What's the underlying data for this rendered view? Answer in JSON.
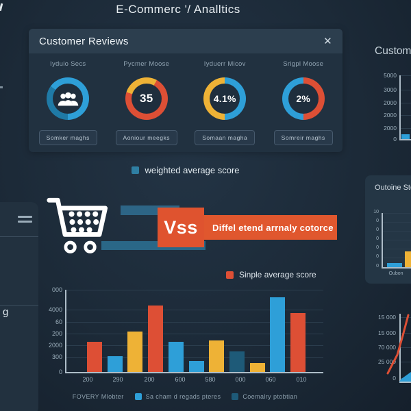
{
  "title": "E-Commerc '/ Analltics",
  "colors": {
    "blue": "#2e9fd8",
    "blue_dark": "#1f7aa6",
    "dark_blue": "#1e5a78",
    "red": "#dd4f35",
    "yellow": "#eeb236",
    "blue_muted": "#2f7fa3",
    "orange": "#e0572e",
    "bg": "#1c2a38",
    "panel": "#213140",
    "header": "#2c3e4e"
  },
  "reviews_panel": {
    "title": "Customer Reviews",
    "close_icon": "✕",
    "gauges": [
      {
        "label": "Iyduio Secs",
        "value": "",
        "icon": "users",
        "segments": [
          {
            "c": "blue",
            "a": 0,
            "b": 50
          },
          {
            "c": "blue_dark",
            "a": 50,
            "b": 85
          },
          {
            "c": "blue",
            "a": 85,
            "b": 100
          }
        ],
        "badge": "Somker maghs"
      },
      {
        "label": "Pycmer Moose",
        "value": "35",
        "icon": "",
        "segments": [
          {
            "c": "yellow",
            "a": 0,
            "b": 8
          },
          {
            "c": "red",
            "a": 8,
            "b": 80
          },
          {
            "c": "yellow",
            "a": 80,
            "b": 100
          }
        ],
        "badge": "Aoniour meegks"
      },
      {
        "label": "Iyduerr Micov",
        "value": "4.1%",
        "icon": "",
        "segments": [
          {
            "c": "blue",
            "a": 0,
            "b": 50
          },
          {
            "c": "yellow",
            "a": 50,
            "b": 100
          }
        ],
        "badge": "Somaan magha"
      },
      {
        "label": "Srigpl Moose",
        "value": "2%",
        "icon": "",
        "segments": [
          {
            "c": "red",
            "a": 0,
            "b": 50
          },
          {
            "c": "blue",
            "a": 50,
            "b": 100
          }
        ],
        "badge": "Somreir maghs"
      }
    ],
    "legend_weighted": "weighted average score"
  },
  "vs_section": {
    "vs_label": "Vss",
    "banner": "Diffel etend arrnaly cotorce",
    "legend_simple": "Sinple average score"
  },
  "chart_data": [
    {
      "name": "main_bar_chart",
      "type": "bar",
      "title": "",
      "y_ticks": [
        "000",
        "4000",
        "60",
        "200",
        "2000",
        "300",
        "0"
      ],
      "x_ticks": [
        "200",
        "290",
        "200",
        "600",
        "580",
        "000",
        "060",
        "010"
      ],
      "ylim": [
        0,
        100
      ],
      "grid": true,
      "series": [
        {
          "name": "scores",
          "values_pct": [
            37,
            19,
            49,
            81,
            37,
            13,
            38,
            25,
            11,
            91,
            72
          ],
          "colors": [
            "red",
            "blue",
            "yellow",
            "red",
            "blue",
            "blue",
            "yellow",
            "dark_blue",
            "yellow",
            "blue",
            "red"
          ]
        }
      ]
    },
    {
      "name": "right_top_chart",
      "type": "bar",
      "title": "Custom",
      "y_ticks": [
        "5000",
        "3000",
        "2000",
        "2000",
        "2000",
        "0"
      ],
      "x_ticks": [],
      "ylim": [
        0,
        100
      ],
      "grid": true,
      "series": [
        {
          "name": "trend",
          "values_pct": [
            8
          ],
          "colors": [
            "blue"
          ]
        }
      ]
    },
    {
      "name": "right_mid_chart",
      "type": "bar",
      "title": "Outoine Sto",
      "y_ticks": [
        "10",
        "0",
        "0",
        "0",
        "0",
        "0",
        "0"
      ],
      "x_ticks": [
        "Oubon"
      ],
      "ylim": [
        0,
        100
      ],
      "grid": true,
      "series": [
        {
          "name": "outcome",
          "values_pct": [
            7,
            27
          ],
          "colors": [
            "blue",
            "yellow"
          ]
        }
      ]
    },
    {
      "name": "right_bottom_chart",
      "type": "line",
      "y_ticks": [
        "15 000",
        "15 000",
        "70 000",
        "25 000",
        "0"
      ],
      "x_ticks": [],
      "grid": true,
      "series": [
        {
          "name": "growth-line",
          "color": "red",
          "points": [
            [
              38,
              95
            ],
            [
              52,
              68
            ],
            [
              60,
              40
            ],
            [
              68,
              10
            ]
          ]
        },
        {
          "name": "base-area",
          "color": "blue",
          "points": [
            [
              55,
              107
            ],
            [
              58,
              103
            ],
            [
              72,
              93
            ],
            [
              72,
              107
            ]
          ]
        }
      ]
    }
  ],
  "bottom_legend": {
    "prefix": "FOVERY Mlobter",
    "items": [
      {
        "swatch": "blue",
        "label": "Sa cham d regads pteres"
      },
      {
        "swatch": "dark_blue",
        "label": "Coemalry ptobtian"
      }
    ]
  },
  "left_panel": {
    "partial_label": "g"
  }
}
